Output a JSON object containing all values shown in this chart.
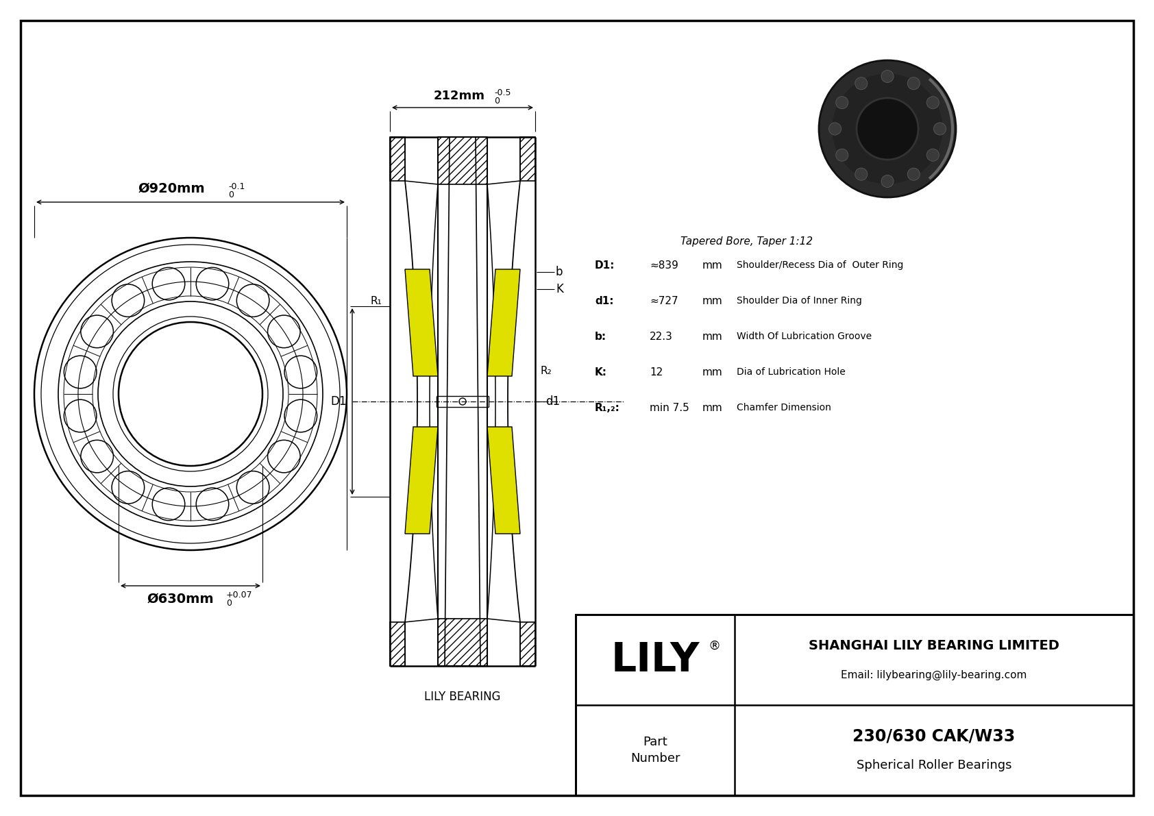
{
  "bg_color": "#ffffff",
  "outer_dim": "Ø920mm",
  "outer_tol_upper": "0",
  "outer_tol_lower": "-0.1",
  "inner_dim": "Ø630mm",
  "inner_tol_upper": "+0.07",
  "inner_tol_lower": "0",
  "width_dim": "212mm",
  "width_tol_upper": "0",
  "width_tol_lower": "-0.5",
  "specs_title": "Tapered Bore, Taper 1:12",
  "specs": [
    {
      "label": "D1:",
      "val": "≈839",
      "unit": "mm",
      "desc": "Shoulder/Recess Dia of  Outer Ring"
    },
    {
      "label": "d1:",
      "val": "≈727",
      "unit": "mm",
      "desc": "Shoulder Dia of Inner Ring"
    },
    {
      "label": "b:",
      "val": "22.3",
      "unit": "mm",
      "desc": "Width Of Lubrication Groove"
    },
    {
      "label": "K:",
      "val": "12",
      "unit": "mm",
      "desc": "Dia of Lubrication Hole"
    },
    {
      "label": "R₁,₂:",
      "val": "min 7.5",
      "unit": "mm",
      "desc": "Chamfer Dimension"
    }
  ],
  "brand": "LILY",
  "registered": "®",
  "company": "SHANGHAI LILY BEARING LIMITED",
  "email": "Email: lilybearing@lily-bearing.com",
  "part_label": "Part\nNumber",
  "part_number": "230/630 CAK/W33",
  "part_type": "Spherical Roller Bearings",
  "lily_bearing": "LILY BEARING",
  "label_b": "b",
  "label_K": "K",
  "label_R1": "R₁",
  "label_R2": "R₂",
  "label_D1": "D1",
  "label_d1": "d1",
  "roller_color": "#e0e000"
}
